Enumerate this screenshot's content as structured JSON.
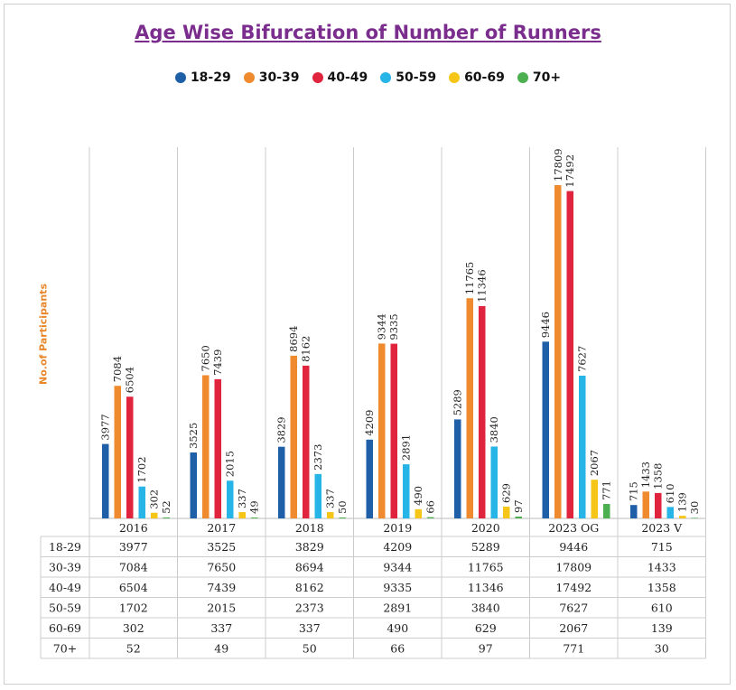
{
  "title": "Age Wise Bifurcation of Number of Runners",
  "y_axis_label": "No.of Participants",
  "legend": [
    {
      "label": "18-29",
      "color": "#1f5fa8"
    },
    {
      "label": "30-39",
      "color": "#ef8a2e"
    },
    {
      "label": "40-49",
      "color": "#e0243e"
    },
    {
      "label": "50-59",
      "color": "#27b4e6"
    },
    {
      "label": "60-69",
      "color": "#f5c518"
    },
    {
      "label": "70+",
      "color": "#4caf50"
    }
  ],
  "chart_data": {
    "type": "bar",
    "title": "Age Wise Bifurcation of Number of Runners",
    "ylabel": "No.of Participants",
    "xlabel": "",
    "categories": [
      "2016",
      "2017",
      "2018",
      "2019",
      "2020",
      "2023 OG",
      "2023 V"
    ],
    "series": [
      {
        "name": "18-29",
        "color": "#1f5fa8",
        "values": [
          3977,
          3525,
          3829,
          4209,
          5289,
          9446,
          715
        ]
      },
      {
        "name": "30-39",
        "color": "#ef8a2e",
        "values": [
          7084,
          7650,
          8694,
          9344,
          11765,
          17809,
          1433
        ]
      },
      {
        "name": "40-49",
        "color": "#e0243e",
        "values": [
          6504,
          7439,
          8162,
          9335,
          11346,
          17492,
          1358
        ]
      },
      {
        "name": "50-59",
        "color": "#27b4e6",
        "values": [
          1702,
          2015,
          2373,
          2891,
          3840,
          7627,
          610
        ]
      },
      {
        "name": "60-69",
        "color": "#f5c518",
        "values": [
          302,
          337,
          337,
          490,
          629,
          2067,
          139
        ]
      },
      {
        "name": "70+",
        "color": "#4caf50",
        "values": [
          52,
          49,
          50,
          66,
          97,
          771,
          30
        ]
      }
    ],
    "ylim": [
      0,
      20000
    ],
    "legend_position": "top",
    "grid": false,
    "data_table": true
  }
}
